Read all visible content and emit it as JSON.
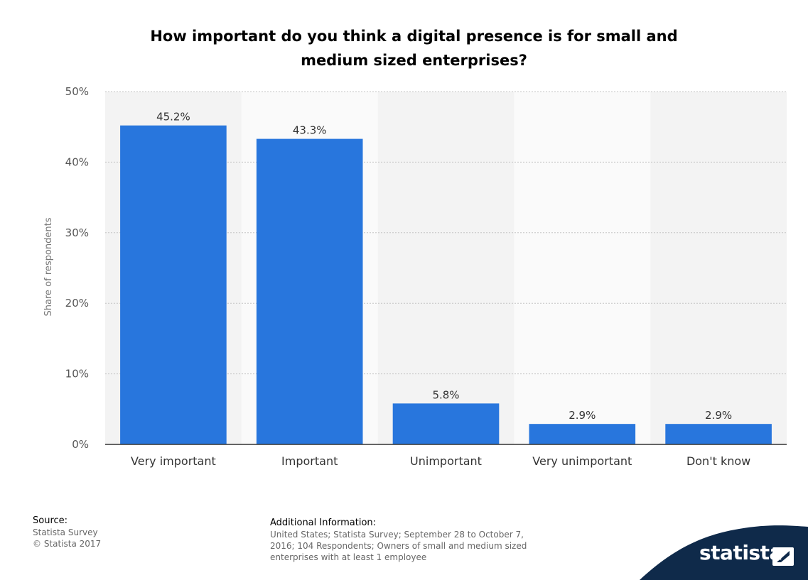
{
  "chart_data": {
    "type": "bar",
    "title_lines": [
      "How important do you think a digital presence is for small and",
      "medium sized enterprises?"
    ],
    "ylabel": "Share of respondents",
    "ylim": [
      0,
      50
    ],
    "yticks": [
      "0%",
      "10%",
      "20%",
      "30%",
      "40%",
      "50%"
    ],
    "categories": [
      "Very important",
      "Important",
      "Unimportant",
      "Very unimportant",
      "Don't know"
    ],
    "values": [
      45.2,
      43.3,
      5.8,
      2.9,
      2.9
    ],
    "value_labels": [
      "45.2%",
      "43.3%",
      "5.8%",
      "2.9%",
      "2.9%"
    ],
    "bar_color": "#2876dd",
    "grid": true
  },
  "footer": {
    "source_heading": "Source:",
    "source_lines": [
      "Statista Survey",
      "© Statista 2017"
    ],
    "info_heading": "Additional Information:",
    "info_lines": [
      "United States; Statista Survey; September 28 to October 7,",
      "2016; 104 Respondents; Owners of small and medium sized",
      "enterprises with at least 1 employee"
    ]
  },
  "brand": {
    "name": "statista",
    "wave_color": "#0f2a4a",
    "accent_color": "#2a79d6"
  }
}
